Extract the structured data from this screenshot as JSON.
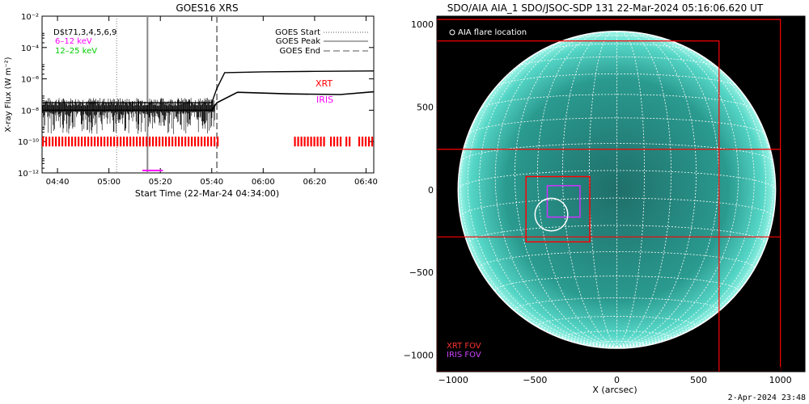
{
  "goes": {
    "title": "GOES16 XRS",
    "ylabel": "X-ray Flux (W m⁻²)",
    "xlabel": "Start Time (22-Mar-24 04:34:00)",
    "channels_label": "D$t71,3,4,5,6,9",
    "band_low": "6–12 keV",
    "band_high": "12–25 keV",
    "legend": [
      "GOES Start",
      "GOES Peak",
      "GOES End"
    ],
    "xrt_label": "XRT",
    "iris_label": "IRIS",
    "colors": {
      "xrt": "#ff0000",
      "iris": "#ff00ff",
      "band_low": "#ff00ff",
      "band_high": "#00cc00"
    }
  },
  "aia": {
    "title": "SDO/AIA AIA_1 SDO/JSOC-SDP 131 22-Mar-2024 05:16:06.620 UT",
    "xlabel": "X (arcsec)",
    "legend_flare": "AIA flare location",
    "xrt_fov": "XRT FOV",
    "iris_fov": "IRIS FOV",
    "colors": {
      "disk": "#2fa89a",
      "grid": "#ffffff",
      "xrt": "#ff0000",
      "iris": "#cc33ff"
    }
  },
  "footer_date": "2-Apr-2024 23:48",
  "chart_data": [
    {
      "type": "line",
      "title": "GOES16 XRS",
      "xlabel": "Start Time (22-Mar-24 04:34:00)",
      "ylabel": "X-ray Flux (W m⁻²)",
      "ylog": true,
      "ylim": [
        1e-12,
        0.01
      ],
      "yticks": [
        "10⁻¹²",
        "10⁻¹⁰",
        "10⁻⁸",
        "10⁻⁶",
        "10⁻⁴",
        "10⁻²"
      ],
      "xlim": [
        "04:34",
        "06:43"
      ],
      "xticks": [
        "04:40",
        "05:00",
        "05:20",
        "05:40",
        "06:00",
        "06:20",
        "06:40"
      ],
      "series": [
        {
          "name": "12–25 keV",
          "x": [
            "04:34",
            "05:40",
            "05:42",
            "05:45",
            "06:00",
            "06:20",
            "06:43"
          ],
          "y": [
            3e-08,
            3e-08,
            2.5e-07,
            2.5e-06,
            2.8e-06,
            3e-06,
            3.2e-06
          ]
        },
        {
          "name": "6–12 keV",
          "x": [
            "04:34",
            "05:40",
            "05:42",
            "05:50",
            "06:10",
            "06:30",
            "06:43"
          ],
          "y": [
            1e-08,
            1e-08,
            3e-08,
            1.4e-07,
            1.1e-07,
            1e-07,
            1.5e-07
          ]
        }
      ],
      "events": {
        "goes_start": "05:03",
        "goes_peak": "05:15",
        "goes_end": "05:42"
      },
      "xrt_segments": [
        [
          "04:34",
          "05:42"
        ],
        [
          "06:12",
          "06:24"
        ],
        [
          "06:26",
          "06:30"
        ],
        [
          "06:32",
          "06:34"
        ],
        [
          "06:37",
          "06:43"
        ]
      ],
      "iris_segments": [
        [
          "05:13",
          "05:21"
        ]
      ]
    },
    {
      "type": "scatter",
      "title": "SDO/AIA AIA_1 SDO/JSOC-SDP 131 22-Mar-2024 05:16:06.620 UT",
      "xlabel": "X (arcsec)",
      "xlim": [
        -1100,
        1150
      ],
      "ylim": [
        -1100,
        1050
      ],
      "xticks": [
        -1000,
        -500,
        0,
        500,
        1000
      ],
      "yticks": [
        1000,
        500,
        0,
        -500,
        -1000
      ],
      "flare_location": [
        -400,
        -150
      ],
      "xrt_fov": [
        [
          -1100,
          625,
          -1100,
          900
        ],
        [
          -1100,
          1000,
          -1100,
          1030
        ]
      ],
      "xrt_fov_strips": [
        [
          -1100,
          1000,
          245,
          -285
        ]
      ],
      "xrt_box": [
        -555,
        -165,
        -315,
        80
      ],
      "iris_fov": [
        -425,
        -225,
        -165,
        25
      ]
    }
  ]
}
